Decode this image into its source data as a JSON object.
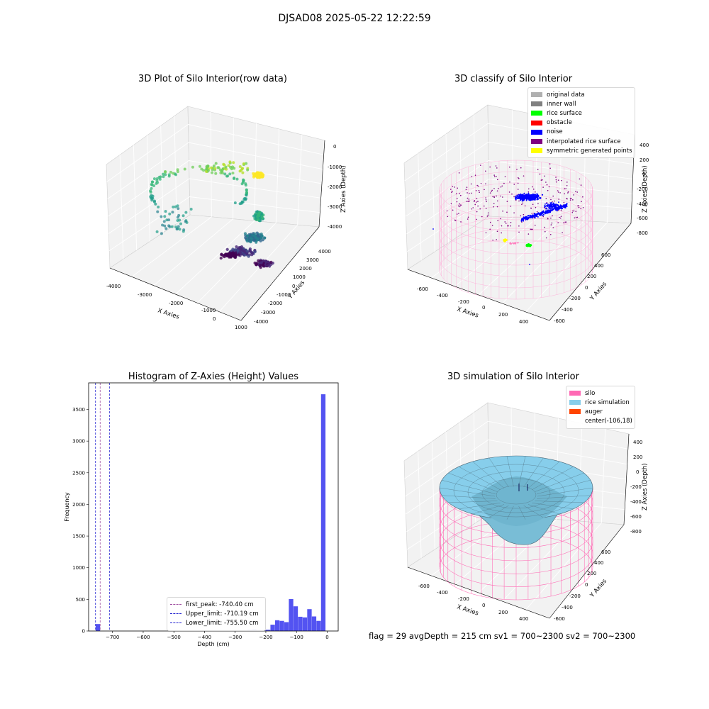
{
  "suptitle": "DJSAD08 2025-05-22 12:22:59",
  "colors": {
    "silo": "#ff69b4",
    "rice": "#87ceeb",
    "noise": "#0000ff",
    "hist": "#4a4af0"
  },
  "chart_data": [
    {
      "type": "scatter",
      "title": "3D Plot of Silo Interior(row data)",
      "xlabel": "X Axies",
      "ylabel": "Y Axies",
      "zlabel": "Z Axies (Depth)",
      "xticks": [
        "-4000",
        "-3000",
        "-2000",
        "-1000",
        "0",
        "1000"
      ],
      "yticks": [
        "-4000",
        "-3000",
        "-2000",
        "-1000",
        "0",
        "1000",
        "2000",
        "3000",
        "4000"
      ],
      "zticks": [
        "0",
        "-1000",
        "-2000",
        "-3000",
        "-4000"
      ],
      "colormap": "viridis"
    },
    {
      "type": "scatter",
      "title": "3D classify of Silo Interior",
      "xlabel": "X Axies",
      "ylabel": "Y Axies",
      "zlabel": "Z Axies (Depth)",
      "xticks": [
        "-600",
        "-400",
        "-200",
        "0",
        "200",
        "400"
      ],
      "yticks": [
        "-600",
        "-400",
        "-200",
        "0",
        "200",
        "400",
        "600"
      ],
      "zticks": [
        "200",
        "0",
        "-200",
        "-400",
        "-600",
        "-800"
      ],
      "zticks_top": "400",
      "legend": [
        {
          "label": "original data",
          "color": "#b0b0b0"
        },
        {
          "label": "inner wall",
          "color": "#808080"
        },
        {
          "label": "rice surface",
          "color": "#00ff00"
        },
        {
          "label": "obstacle",
          "color": "#ff0000"
        },
        {
          "label": "noise",
          "color": "#0000ff"
        },
        {
          "label": "interpolated rice surface",
          "color": "#800080"
        },
        {
          "label": "symmetric generated points",
          "color": "#ffff00"
        }
      ],
      "legend_position": "top-right"
    },
    {
      "type": "bar",
      "title": "Histogram of Z-Axies (Height) Values",
      "xlabel": "Depth (cm)",
      "ylabel": "Frequency",
      "xlim": [
        -778,
        36
      ],
      "ylim": [
        0,
        3920
      ],
      "xticks": [
        -700,
        -600,
        -500,
        -400,
        -300,
        -200,
        -100,
        0
      ],
      "yticks": [
        0,
        500,
        1000,
        1500,
        2000,
        2500,
        3000,
        3500
      ],
      "bin_width": 15,
      "bins": [
        {
          "x": -755,
          "v": 110
        },
        {
          "x": -290,
          "v": 5
        },
        {
          "x": -275,
          "v": 10
        },
        {
          "x": -260,
          "v": 20
        },
        {
          "x": -245,
          "v": 25
        },
        {
          "x": -230,
          "v": 15
        },
        {
          "x": -215,
          "v": 15
        },
        {
          "x": -200,
          "v": 20
        },
        {
          "x": -185,
          "v": 100
        },
        {
          "x": -170,
          "v": 170
        },
        {
          "x": -155,
          "v": 160
        },
        {
          "x": -140,
          "v": 140
        },
        {
          "x": -125,
          "v": 505
        },
        {
          "x": -110,
          "v": 390
        },
        {
          "x": -95,
          "v": 225
        },
        {
          "x": -80,
          "v": 215
        },
        {
          "x": -65,
          "v": 345
        },
        {
          "x": -50,
          "v": 230
        },
        {
          "x": -35,
          "v": 160
        },
        {
          "x": -20,
          "v": 3740
        }
      ],
      "lines": [
        {
          "label": "first_peak: -740.40 cm",
          "value": -740.4,
          "color": "#a050a0"
        },
        {
          "label": "Upper_limit: -710.19 cm",
          "value": -710.19,
          "color": "#2020d0"
        },
        {
          "label": "Lower_limit: -755.50 cm",
          "value": -755.5,
          "color": "#2020d0"
        }
      ],
      "legend_position": "lower-right"
    },
    {
      "type": "area",
      "title": "3D simulation of Silo Interior",
      "xlabel": "X Axies",
      "ylabel": "Y Axies",
      "zlabel": "Z Axies (Depth)",
      "xticks": [
        "-600",
        "-400",
        "-200",
        "0",
        "200",
        "400"
      ],
      "yticks": [
        "-600",
        "-400",
        "-200",
        "0",
        "200",
        "400",
        "600"
      ],
      "zticks": [
        "400",
        "200",
        "0",
        "-200",
        "-400",
        "-600",
        "-800"
      ],
      "legend": [
        {
          "label": "silo",
          "color": "#ff69b4"
        },
        {
          "label": "rice simulation",
          "color": "#87ceeb"
        },
        {
          "label": "auger",
          "color": "#ff4500"
        },
        {
          "label": "center(-106,18)",
          "color": ""
        }
      ],
      "legend_position": "top-right"
    }
  ],
  "footer": "flag = 29  avgDepth = 215 cm  sv1 = 700~2300  sv2 = 700~2300"
}
